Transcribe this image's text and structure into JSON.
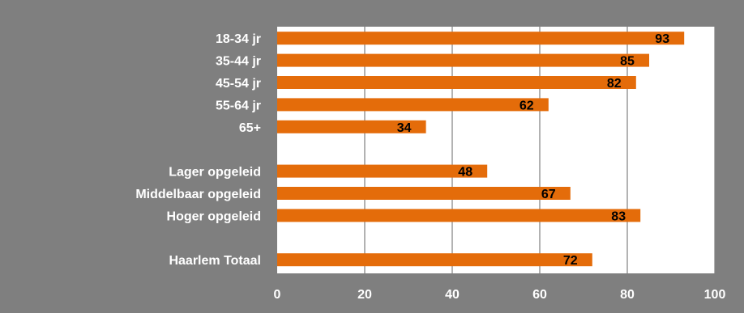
{
  "chart_data": {
    "type": "bar",
    "orientation": "horizontal",
    "categories": [
      "18-34 jr",
      "35-44 jr",
      "45-54 jr",
      "55-64 jr",
      "65+",
      "",
      "Lager opgeleid",
      "Middelbaar opgeleid",
      "Hoger opgeleid",
      "",
      "Haarlem Totaal"
    ],
    "values": [
      93,
      85,
      82,
      62,
      34,
      null,
      48,
      67,
      83,
      null,
      72
    ],
    "data_labels": [
      "93",
      "85",
      "82",
      "62",
      "34",
      "",
      "48",
      "67",
      "83",
      "",
      "72"
    ],
    "x_ticks": [
      "0",
      "20",
      "40",
      "60",
      "80",
      "100"
    ],
    "xlim": [
      0,
      100
    ],
    "grid": true,
    "legend": "none",
    "title": "",
    "xlabel": "",
    "ylabel": ""
  },
  "colors": {
    "background": "#7f7f7f",
    "plot_area": "#ffffff",
    "bar": "#e46c0a",
    "gridline": "#808080",
    "axis_text": "#ffffff",
    "value_text": "#000000"
  }
}
